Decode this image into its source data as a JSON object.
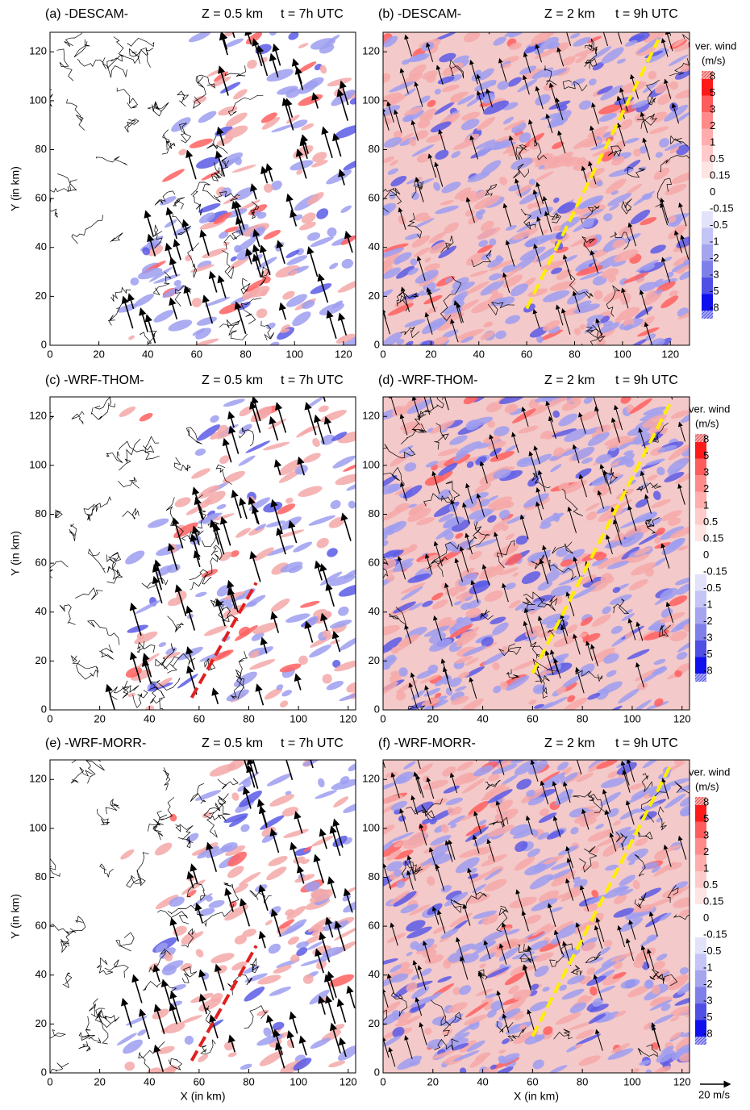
{
  "chart_data": [
    {
      "type": "map",
      "title": "(a) -DESCAM-",
      "height": "Z = 0.5 km",
      "time": "t =  7h UTC",
      "ylabel": "Y (in km)",
      "xlim": [
        0,
        125
      ],
      "ylim": [
        0,
        128
      ],
      "xticks": [
        0,
        20,
        40,
        60,
        80,
        100,
        120
      ],
      "yticks": [
        0,
        20,
        40,
        60,
        80,
        100,
        120
      ]
    },
    {
      "type": "map",
      "title": "(b) -DESCAM-",
      "height": "Z = 2 km",
      "time": "t =  9h UTC",
      "xlim": [
        0,
        128
      ],
      "ylim": [
        0,
        128
      ],
      "xticks": [
        0,
        20,
        40,
        60,
        80,
        100,
        120
      ],
      "yticks": [
        0,
        20,
        40,
        60,
        80,
        100,
        120
      ]
    },
    {
      "type": "map",
      "title": "(c) -WRF-THOM-",
      "height": "Z = 0.5 km",
      "time": "t =  7h UTC",
      "ylabel": "Y (in km)",
      "xlim": [
        0,
        123
      ],
      "ylim": [
        0,
        128
      ],
      "xticks": [
        0,
        20,
        40,
        60,
        80,
        100,
        120
      ],
      "yticks": [
        0,
        20,
        40,
        60,
        80,
        100,
        120
      ]
    },
    {
      "type": "map",
      "title": "(d) -WRF-THOM-",
      "height": "Z = 2 km",
      "time": "t =  9h UTC",
      "xlim": [
        0,
        123
      ],
      "ylim": [
        0,
        128
      ],
      "xticks": [
        0,
        20,
        40,
        60,
        80,
        100,
        120
      ],
      "yticks": [
        0,
        20,
        40,
        60,
        80,
        100,
        120
      ]
    },
    {
      "type": "map",
      "title": "(e) -WRF-MORR-",
      "height": "Z = 0.5 km",
      "time": "t =  7h UTC",
      "ylabel": "Y (in km)",
      "xlabel": "X (in km)",
      "xlim": [
        0,
        123
      ],
      "ylim": [
        0,
        128
      ],
      "xticks": [
        0,
        20,
        40,
        60,
        80,
        100,
        120
      ],
      "yticks": [
        0,
        20,
        40,
        60,
        80,
        100,
        120
      ]
    },
    {
      "type": "map",
      "title": "(f) -WRF-MORR-",
      "height": "Z = 2 km",
      "time": "t =  9h UTC",
      "xlabel": "X (in km)",
      "xlim": [
        0,
        123
      ],
      "ylim": [
        0,
        128
      ],
      "xticks": [
        0,
        20,
        40,
        60,
        80,
        100,
        120
      ],
      "yticks": [
        0,
        20,
        40,
        60,
        80,
        100,
        120
      ]
    }
  ],
  "colorbar": {
    "title": "ver. wind",
    "units": "(m/s)",
    "levels": [
      8,
      5,
      3,
      2,
      1,
      0.5,
      0.15,
      0,
      -0.15,
      -0.5,
      -1,
      -2,
      -3,
      -5,
      -8
    ],
    "colors": [
      "#ff1a1a",
      "#ff5c5c",
      "#ff8a8a",
      "#ffadad",
      "#ffcaca",
      "#ffe4e4",
      "#ffffff",
      "#ffffff",
      "#e2e2fb",
      "#c4c4f6",
      "#a4a4ef",
      "#7f7fea",
      "#4f4fe6",
      "#1010ee"
    ]
  },
  "reference_arrow": "20 m/s"
}
